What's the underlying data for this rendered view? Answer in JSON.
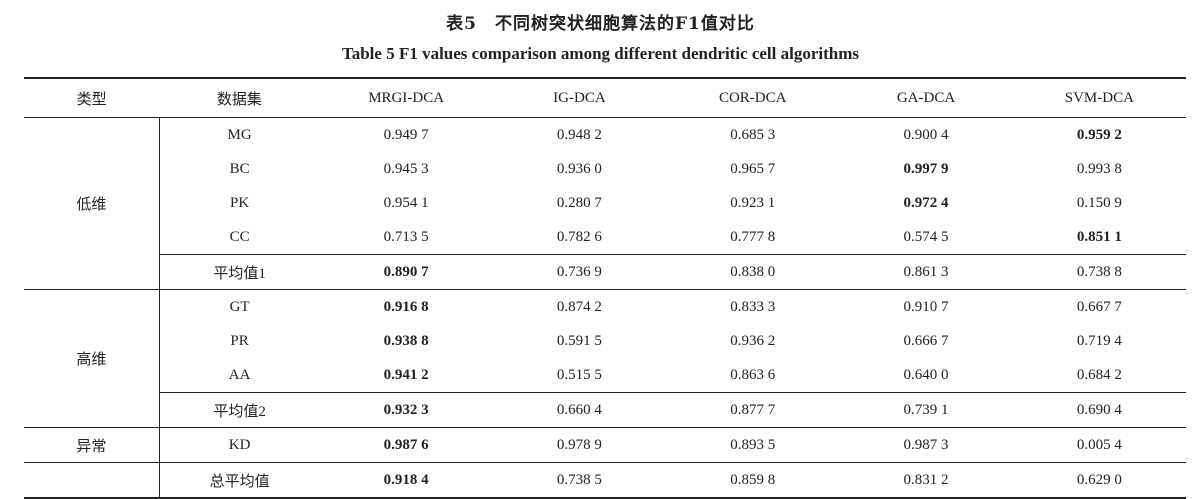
{
  "caption": {
    "cn": "表5　不同树突状细胞算法的F1值对比",
    "en": "Table 5    F1 values comparison among different dendritic cell algorithms"
  },
  "header": {
    "type": "类型",
    "dataset": "数据集",
    "methods": [
      "MRGI-DCA",
      "IG-DCA",
      "COR-DCA",
      "GA-DCA",
      "SVM-DCA"
    ]
  },
  "groups": [
    {
      "type": "低维",
      "rows": [
        {
          "dataset": "MG",
          "values": [
            "0.949 7",
            "0.948 2",
            "0.685 3",
            "0.900 4",
            "0.959 2"
          ],
          "bold": [
            4
          ]
        },
        {
          "dataset": "BC",
          "values": [
            "0.945 3",
            "0.936 0",
            "0.965 7",
            "0.997 9",
            "0.993 8"
          ],
          "bold": [
            3
          ]
        },
        {
          "dataset": "PK",
          "values": [
            "0.954 1",
            "0.280 7",
            "0.923 1",
            "0.972 4",
            "0.150 9"
          ],
          "bold": [
            3
          ]
        },
        {
          "dataset": "CC",
          "values": [
            "0.713 5",
            "0.782 6",
            "0.777 8",
            "0.574 5",
            "0.851 1"
          ],
          "bold": [
            4
          ]
        }
      ],
      "avg": {
        "dataset": "平均值1",
        "values": [
          "0.890 7",
          "0.736 9",
          "0.838 0",
          "0.861 3",
          "0.738 8"
        ],
        "bold": [
          0
        ]
      }
    },
    {
      "type": "高维",
      "rows": [
        {
          "dataset": "GT",
          "values": [
            "0.916 8",
            "0.874 2",
            "0.833 3",
            "0.910 7",
            "0.667 7"
          ],
          "bold": [
            0
          ]
        },
        {
          "dataset": "PR",
          "values": [
            "0.938 8",
            "0.591 5",
            "0.936 2",
            "0.666 7",
            "0.719 4"
          ],
          "bold": [
            0
          ]
        },
        {
          "dataset": "AA",
          "values": [
            "0.941 2",
            "0.515 5",
            "0.863 6",
            "0.640 0",
            "0.684 2"
          ],
          "bold": [
            0
          ]
        }
      ],
      "avg": {
        "dataset": "平均值2",
        "values": [
          "0.932 3",
          "0.660 4",
          "0.877 7",
          "0.739 1",
          "0.690 4"
        ],
        "bold": [
          0
        ]
      }
    },
    {
      "type": "异常",
      "rows": [
        {
          "dataset": "KD",
          "values": [
            "0.987 6",
            "0.978 9",
            "0.893 5",
            "0.987 3",
            "0.005 4"
          ],
          "bold": [
            0
          ]
        }
      ]
    }
  ],
  "total": {
    "dataset": "总平均值",
    "values": [
      "0.918 4",
      "0.738 5",
      "0.859 8",
      "0.831 2",
      "0.629 0"
    ],
    "bold": [
      0
    ]
  }
}
